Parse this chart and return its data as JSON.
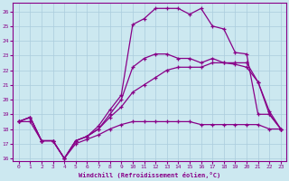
{
  "xlabel": "Windchill (Refroidissement éolien,°C)",
  "bg_color": "#cce8f0",
  "grid_color": "#aaccdd",
  "line_color": "#880088",
  "xlim": [
    -0.5,
    23.5
  ],
  "ylim": [
    15.8,
    26.6
  ],
  "xticks": [
    0,
    1,
    2,
    3,
    4,
    5,
    6,
    7,
    8,
    9,
    10,
    11,
    12,
    13,
    14,
    15,
    16,
    17,
    18,
    19,
    20,
    21,
    22,
    23
  ],
  "yticks": [
    16,
    17,
    18,
    19,
    20,
    21,
    22,
    23,
    24,
    25,
    26
  ],
  "line1_x": [
    0,
    1,
    2,
    3,
    4,
    5,
    6,
    7,
    8,
    9,
    10,
    11,
    12,
    13,
    14,
    15,
    16,
    17,
    18,
    19,
    20,
    21,
    22,
    23
  ],
  "line1_y": [
    18.5,
    18.8,
    17.2,
    17.2,
    16.0,
    17.2,
    17.5,
    18.2,
    19.3,
    20.3,
    25.1,
    25.5,
    26.2,
    26.2,
    26.2,
    25.8,
    26.2,
    25.0,
    24.8,
    23.2,
    23.1,
    19.0,
    19.0,
    18.0
  ],
  "line2_x": [
    0,
    1,
    2,
    3,
    4,
    5,
    6,
    7,
    8,
    9,
    10,
    11,
    12,
    13,
    14,
    15,
    16,
    17,
    18,
    19,
    20,
    21,
    22,
    23
  ],
  "line2_y": [
    18.5,
    18.8,
    17.2,
    17.2,
    16.0,
    17.2,
    17.5,
    18.0,
    19.0,
    20.0,
    22.2,
    22.8,
    23.1,
    23.1,
    22.8,
    22.8,
    22.5,
    22.8,
    22.5,
    22.4,
    22.2,
    21.2,
    19.0,
    18.0
  ],
  "line3_x": [
    0,
    1,
    2,
    3,
    4,
    5,
    6,
    7,
    8,
    9,
    10,
    11,
    12,
    13,
    14,
    15,
    16,
    17,
    18,
    19,
    20,
    21,
    22,
    23
  ],
  "line3_y": [
    18.5,
    18.8,
    17.2,
    17.2,
    16.0,
    17.2,
    17.5,
    18.0,
    18.8,
    19.5,
    20.5,
    21.0,
    21.5,
    22.0,
    22.2,
    22.2,
    22.2,
    22.5,
    22.5,
    22.5,
    22.5,
    21.2,
    19.2,
    18.0
  ],
  "line4_x": [
    0,
    1,
    2,
    3,
    4,
    5,
    6,
    7,
    8,
    9,
    10,
    11,
    12,
    13,
    14,
    15,
    16,
    17,
    18,
    19,
    20,
    21,
    22,
    23
  ],
  "line4_y": [
    18.5,
    18.5,
    17.2,
    17.2,
    16.0,
    17.0,
    17.3,
    17.6,
    18.0,
    18.3,
    18.5,
    18.5,
    18.5,
    18.5,
    18.5,
    18.5,
    18.3,
    18.3,
    18.3,
    18.3,
    18.3,
    18.3,
    18.0,
    18.0
  ]
}
